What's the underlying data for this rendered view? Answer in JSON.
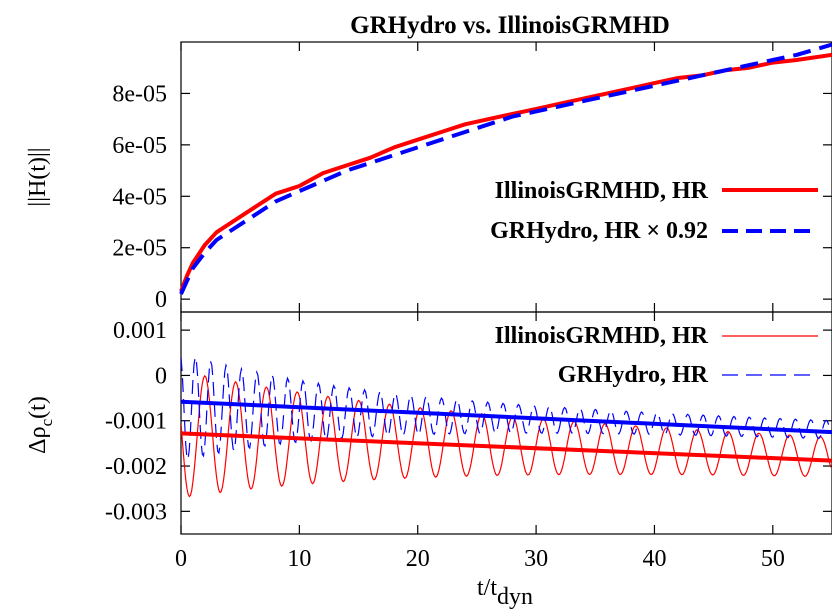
{
  "chart_data": [
    {
      "type": "line",
      "title": "GRHydro vs. IllinoisGRMHD",
      "ylabel": "||H(t)||",
      "xlim": [
        0,
        55
      ],
      "ylim": [
        -5e-06,
        0.0001
      ],
      "yticks": [
        "0",
        "2e-05",
        "4e-05",
        "6e-05",
        "8e-05"
      ],
      "ytick_values": [
        0,
        2e-05,
        4e-05,
        6e-05,
        8e-05
      ],
      "legend_position": "middle-right",
      "series": [
        {
          "name": "IllinoisGRMHD, HR",
          "color": "#ff0000",
          "style": "solid",
          "x": [
            0,
            0.5,
            1,
            2,
            3,
            4,
            6,
            8,
            10,
            12,
            14,
            16,
            18,
            20,
            22,
            24,
            26,
            28,
            30,
            32,
            34,
            36,
            38,
            40,
            42,
            44,
            46,
            48,
            50,
            52,
            55
          ],
          "y": [
            3e-06,
            9e-06,
            1.4e-05,
            2.1e-05,
            2.6e-05,
            2.9e-05,
            3.5e-05,
            4.1e-05,
            4.4e-05,
            4.9e-05,
            5.2e-05,
            5.5e-05,
            5.9e-05,
            6.2e-05,
            6.5e-05,
            6.8e-05,
            7e-05,
            7.2e-05,
            7.4e-05,
            7.6e-05,
            7.8e-05,
            8e-05,
            8.2e-05,
            8.4e-05,
            8.6e-05,
            8.7e-05,
            8.9e-05,
            9e-05,
            9.2e-05,
            9.3e-05,
            9.5e-05
          ]
        },
        {
          "name": "GRHydro, HR × 0.92",
          "color": "#0000ff",
          "style": "dashed",
          "x": [
            0,
            0.5,
            1,
            2,
            3,
            4,
            6,
            8,
            10,
            12,
            14,
            16,
            18,
            20,
            22,
            24,
            26,
            28,
            30,
            32,
            34,
            36,
            38,
            40,
            42,
            44,
            46,
            48,
            50,
            52,
            55
          ],
          "y": [
            2e-06,
            7e-06,
            1.2e-05,
            1.8e-05,
            2.3e-05,
            2.6e-05,
            3.2e-05,
            3.8e-05,
            4.2e-05,
            4.6e-05,
            5e-05,
            5.3e-05,
            5.6e-05,
            5.9e-05,
            6.2e-05,
            6.5e-05,
            6.8e-05,
            7.1e-05,
            7.3e-05,
            7.5e-05,
            7.7e-05,
            7.9e-05,
            8.1e-05,
            8.3e-05,
            8.5e-05,
            8.7e-05,
            8.9e-05,
            9.1e-05,
            9.3e-05,
            9.5e-05,
            9.9e-05
          ]
        }
      ]
    },
    {
      "type": "line",
      "xlabel_main": "t/t",
      "xlabel_sub": "dyn",
      "ylabel_main": "Δρ",
      "ylabel_sub": "c",
      "ylabel_tail": "(t)",
      "xlim": [
        0,
        55
      ],
      "ylim": [
        -0.0035,
        0.0014
      ],
      "xticks": [
        "0",
        "10",
        "20",
        "30",
        "40",
        "50"
      ],
      "xtick_values": [
        0,
        10,
        20,
        30,
        40,
        50
      ],
      "yticks": [
        "0.001",
        "0",
        "-0.001",
        "-0.002",
        "-0.003"
      ],
      "ytick_values": [
        0.001,
        0,
        -0.001,
        -0.002,
        -0.003
      ],
      "legend_position": "top-right",
      "series": [
        {
          "name": "IllinoisGRMHD, HR",
          "color": "#ff0000",
          "style": "thin-solid",
          "oscillation": {
            "center_start": -0.0013,
            "center_end": -0.0018,
            "amp_start": 0.0014,
            "amp_end": 0.00035,
            "decay": 0.045,
            "period": 2.6,
            "phase": 1.4
          }
        },
        {
          "name": "GRHydro, HR",
          "color": "#0000ff",
          "style": "thin-dashed",
          "oscillation": {
            "center_start": -0.0007,
            "center_end": -0.0012,
            "amp_start": 0.0012,
            "amp_end": 0.00018,
            "decay": 0.07,
            "period": 1.3,
            "phase": 0.4
          }
        },
        {
          "name": "",
          "color": "#ff0000",
          "style": "thick-fit",
          "x": [
            0,
            55
          ],
          "y": [
            -0.00128,
            -0.00188
          ]
        },
        {
          "name": "",
          "color": "#0000ff",
          "style": "thick-fit",
          "x": [
            0,
            55
          ],
          "y": [
            -0.00058,
            -0.00125
          ]
        }
      ]
    }
  ]
}
